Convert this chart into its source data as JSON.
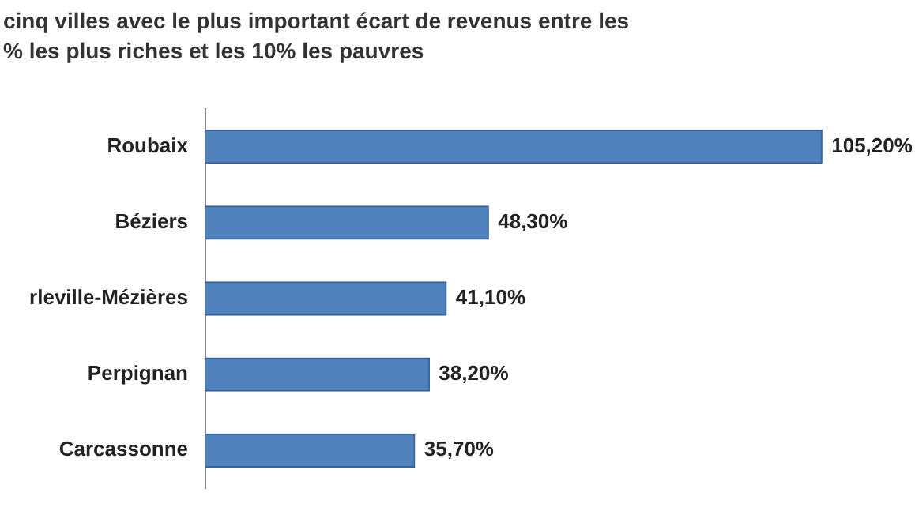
{
  "chart_data": {
    "type": "bar",
    "orientation": "horizontal",
    "title": "cinq villes avec le plus important écart de revenus entre les\n% les plus riches et les 10% les pauvres",
    "categories": [
      "Roubaix",
      "Béziers",
      "rleville-Mézières",
      "Perpignan",
      "Carcassonne"
    ],
    "values": [
      105.2,
      48.3,
      41.1,
      38.2,
      35.7
    ],
    "value_labels": [
      "105,20%",
      "48,30%",
      "41,10%",
      "38,20%",
      "35,70%"
    ],
    "color": "#4f81bd",
    "tick_labels": "y",
    "legend": false
  }
}
